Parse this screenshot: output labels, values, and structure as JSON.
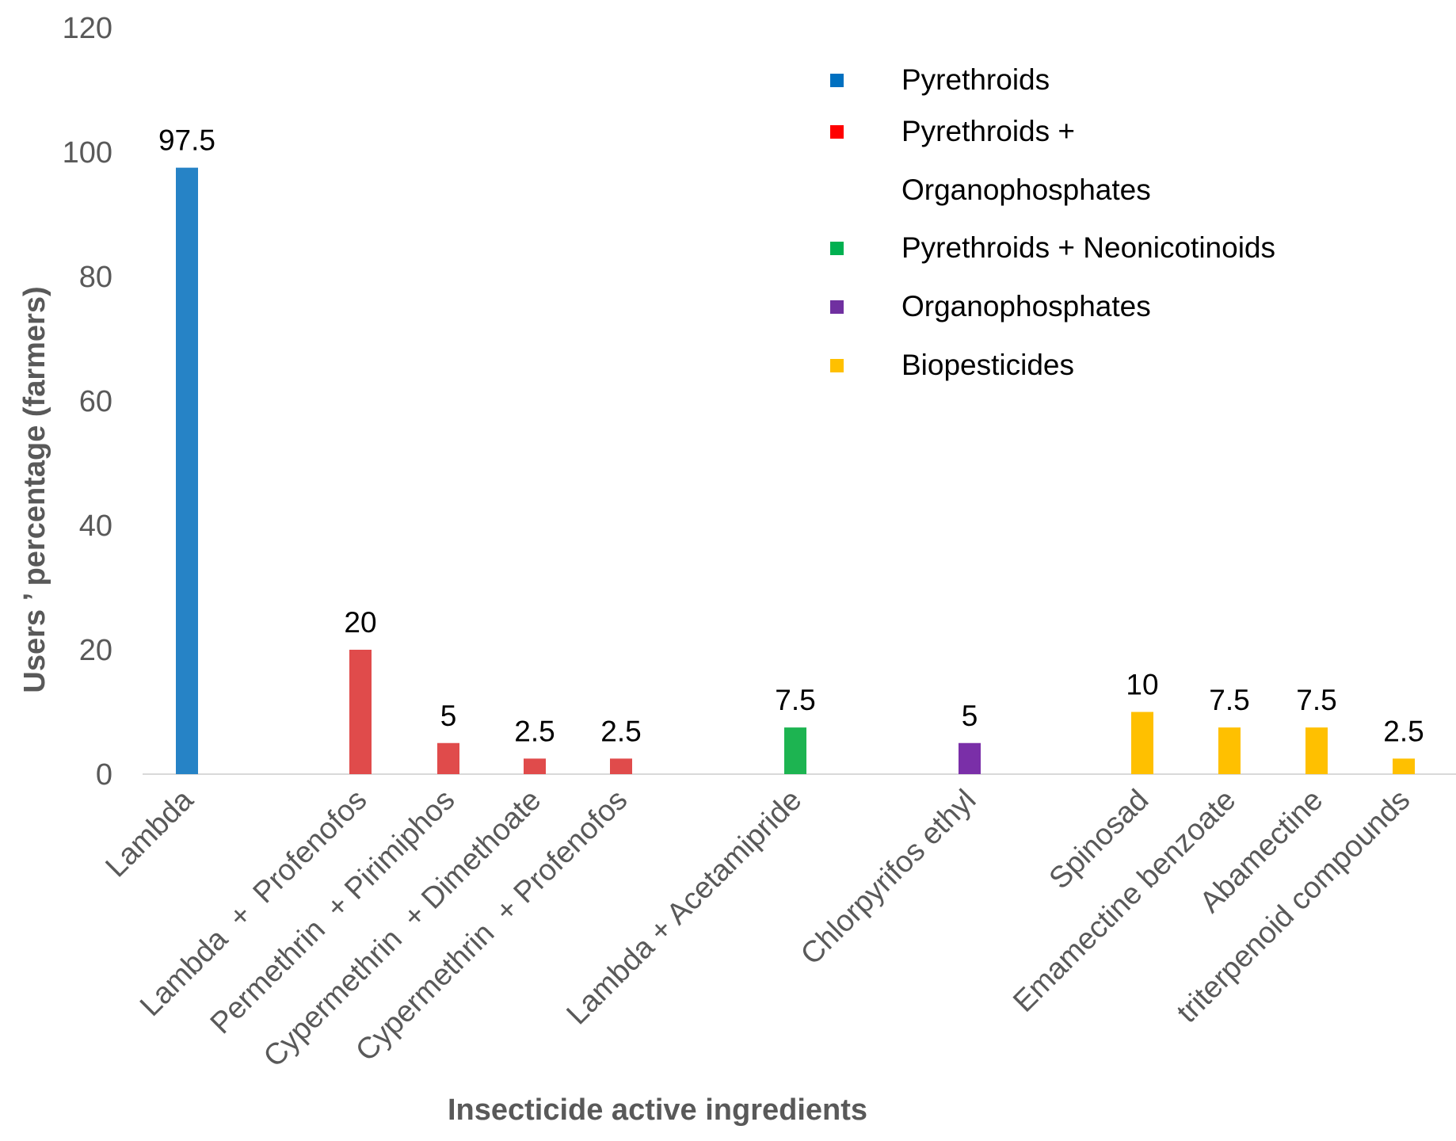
{
  "chart_data": {
    "type": "bar",
    "title": "",
    "xlabel": "Insecticide active ingredients",
    "ylabel": "Users ’ percentage (farmers)",
    "ylim": [
      0,
      120
    ],
    "yticks": [
      0,
      20,
      40,
      60,
      80,
      100,
      120
    ],
    "grid": false,
    "legend_position": "top-right",
    "categories": [
      "Lambda",
      "Lambda  +  Profenofos",
      "Permethrin  + Pirimiphos",
      "Cypermethrin  + Dimethoate",
      "Cypermethrin  + Profenofos",
      "Lambda + Acetamipride",
      "Chlorpyrifos ethyl",
      "Spinosad",
      "Emamectine benzoate",
      "Abamectine",
      "triterpenoid compounds"
    ],
    "values": [
      97.5,
      20,
      5,
      2.5,
      2.5,
      7.5,
      5,
      10,
      7.5,
      7.5,
      2.5
    ],
    "value_labels": [
      "97.5",
      "20",
      "5",
      "2.5",
      "2.5",
      "7.5",
      "5",
      "10",
      "7.5",
      "7.5",
      "2.5"
    ],
    "groups": [
      "Pyrethroids",
      "Pyrethroids + Organophosphates",
      "Pyrethroids + Organophosphates",
      "Pyrethroids + Organophosphates",
      "Pyrethroids + Organophosphates",
      "Pyrethroids + Neonicotinoids",
      "Organophosphates",
      "Biopesticides",
      "Biopesticides",
      "Biopesticides",
      "Biopesticides"
    ],
    "legend": [
      {
        "lines": [
          "Pyrethroids"
        ],
        "color": "#0070c0"
      },
      {
        "lines": [
          "Pyrethroids +",
          "Organophosphates"
        ],
        "color": "#ff0000"
      },
      {
        "lines": [
          "Pyrethroids + Neonicotinoids"
        ],
        "color": "#00b050"
      },
      {
        "lines": [
          "Organophosphates"
        ],
        "color": "#7030a0"
      },
      {
        "lines": [
          "Biopesticides"
        ],
        "color": "#ffc000"
      }
    ],
    "bar_colors": [
      "#2683c6",
      "#e04b4b",
      "#e04b4b",
      "#e04b4b",
      "#e04b4b",
      "#1db451",
      "#7a2fa8",
      "#ffc000",
      "#ffc000",
      "#ffc000",
      "#ffc000"
    ]
  }
}
